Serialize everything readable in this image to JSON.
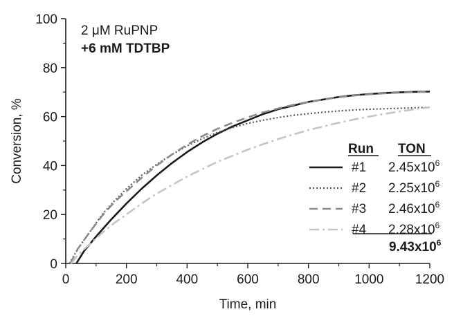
{
  "chart_data": {
    "type": "line",
    "title": "",
    "xlabel": "Time, min",
    "ylabel": "Conversion, %",
    "xlim": [
      0,
      1200
    ],
    "ylim": [
      0,
      100
    ],
    "xticks": [
      0,
      200,
      400,
      600,
      800,
      1000,
      1200
    ],
    "yticks": [
      0,
      20,
      40,
      60,
      80,
      100
    ],
    "grid": false,
    "annotations": [
      {
        "text_pre": "2 ",
        "mu": "μ",
        "text_post": "M RuPNP",
        "bold": false
      },
      {
        "text": "+6 mM TDTBP",
        "bold": true
      }
    ],
    "legend": {
      "placement": "right",
      "header": {
        "run": "Run",
        "ton": "TON"
      },
      "total": {
        "mantissa": "9.43x10",
        "exp": "6"
      }
    },
    "series": [
      {
        "name": "#1",
        "ton": {
          "mantissa": "2.45x10",
          "exp": "6"
        },
        "color": "#1a1a1a",
        "dash": "",
        "width": 2.6,
        "x": [
          35,
          60,
          100,
          150,
          200,
          250,
          300,
          350,
          400,
          450,
          500,
          550,
          600,
          650,
          700,
          750,
          800,
          850,
          900,
          950,
          1000,
          1050,
          1100,
          1150,
          1200
        ],
        "y": [
          0,
          5,
          11,
          18,
          24.5,
          30.5,
          36,
          41,
          45.5,
          49.5,
          53,
          56,
          58.5,
          61,
          63,
          64.5,
          66,
          67,
          68,
          68.7,
          69.2,
          69.6,
          69.9,
          70.1,
          70.2
        ]
      },
      {
        "name": "#2",
        "ton": {
          "mantissa": "2.25x10",
          "exp": "6"
        },
        "color": "#555555",
        "dash": "2,3",
        "width": 2.2,
        "x": [
          12,
          40,
          80,
          120,
          160,
          200,
          250,
          300,
          350,
          400,
          450,
          500,
          550,
          600,
          650,
          700,
          750,
          800,
          850,
          900,
          950,
          1000,
          1050,
          1100,
          1150,
          1200
        ],
        "y": [
          0,
          6,
          13,
          20,
          25.5,
          30.5,
          36,
          40.5,
          44.5,
          48,
          51,
          53.5,
          55.5,
          57.2,
          58.5,
          59.6,
          60.5,
          61.2,
          61.8,
          62.3,
          62.7,
          63,
          63.2,
          63.4,
          63.6,
          63.8
        ]
      },
      {
        "name": "#3",
        "ton": {
          "mantissa": "2.46x10",
          "exp": "6"
        },
        "color": "#8a8a8a",
        "dash": "12,7",
        "width": 2.6,
        "x": [
          15,
          40,
          80,
          120,
          160,
          200,
          250,
          300,
          350,
          400,
          450,
          500,
          550,
          600,
          650,
          700,
          750,
          800,
          850,
          900,
          950,
          1000,
          1050,
          1100,
          1150,
          1200
        ],
        "y": [
          0,
          6,
          13,
          19.5,
          25,
          29.5,
          35,
          40,
          44.5,
          48.5,
          52,
          55,
          57.5,
          59.7,
          61.7,
          63.3,
          64.8,
          66,
          67,
          67.9,
          68.6,
          69.1,
          69.5,
          69.8,
          70,
          70.1
        ]
      },
      {
        "name": "#4",
        "ton": {
          "mantissa": "2.28x10",
          "exp": "6"
        },
        "color": "#c4c4c4",
        "dash": "14,5,3,5",
        "width": 2.6,
        "x": [
          18,
          40,
          80,
          120,
          160,
          200,
          250,
          300,
          350,
          400,
          450,
          500,
          550,
          600,
          650,
          700,
          750,
          800,
          850,
          900,
          950,
          1000,
          1050,
          1100,
          1150,
          1200
        ],
        "y": [
          0,
          3.5,
          8,
          12.5,
          16.5,
          20,
          24.5,
          28.5,
          32,
          35.5,
          38.5,
          41.5,
          44,
          46.5,
          48.7,
          50.8,
          52.7,
          54.5,
          56,
          57.5,
          58.8,
          60,
          61.1,
          62.1,
          63,
          63.8
        ]
      }
    ]
  }
}
